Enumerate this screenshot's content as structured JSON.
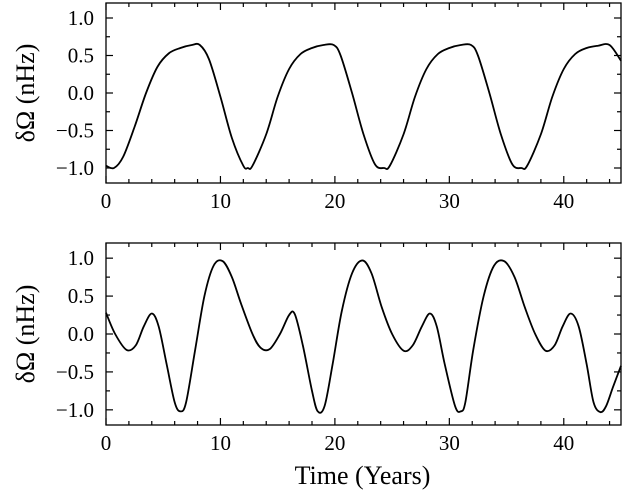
{
  "chart_data": [
    {
      "type": "line",
      "ylabel": "δΩ (nHz)",
      "xlabel": "",
      "xlim": [
        0,
        45
      ],
      "ylim": [
        -1.2,
        1.2
      ],
      "xticks": [
        0,
        10,
        20,
        30,
        40
      ],
      "xtick_labels": [
        "0",
        "10",
        "20",
        "30",
        "40"
      ],
      "yticks": [
        -1.0,
        -0.5,
        0.0,
        0.5,
        1.0
      ],
      "ytick_labels": [
        "−1.0",
        "−0.5",
        "0.0",
        "0.5",
        "1.0"
      ],
      "grid": false,
      "series": [
        {
          "x": [
            0,
            0.7,
            1.5,
            2.5,
            3.5,
            4.5,
            5.5,
            6.5,
            7.5,
            8.2,
            9.0,
            10.0,
            11.0,
            12.0,
            12.4,
            12.8,
            14.0,
            15.0,
            16.0,
            17.0,
            18.0,
            19.0,
            19.9,
            20.5,
            21.5,
            22.5,
            23.5,
            24.3,
            24.8,
            26.0,
            27.0,
            28.0,
            29.0,
            30.0,
            31.0,
            31.9,
            32.5,
            33.5,
            34.5,
            35.5,
            36.3,
            36.8,
            38.0,
            39.0,
            40.0,
            41.0,
            42.0,
            43.0,
            44.0,
            45.0
          ],
          "y": [
            -0.97,
            -1.0,
            -0.85,
            -0.45,
            0.0,
            0.35,
            0.53,
            0.6,
            0.64,
            0.64,
            0.45,
            -0.05,
            -0.6,
            -0.97,
            -1.0,
            -0.97,
            -0.55,
            -0.05,
            0.32,
            0.52,
            0.6,
            0.64,
            0.64,
            0.5,
            0.0,
            -0.55,
            -0.95,
            -1.0,
            -0.97,
            -0.55,
            -0.05,
            0.32,
            0.52,
            0.6,
            0.64,
            0.64,
            0.5,
            0.0,
            -0.55,
            -0.95,
            -1.0,
            -0.97,
            -0.55,
            -0.05,
            0.32,
            0.52,
            0.6,
            0.63,
            0.64,
            0.43
          ]
        }
      ]
    },
    {
      "type": "line",
      "ylabel": "δΩ (nHz)",
      "xlabel": "Time (Years)",
      "xlim": [
        0,
        45
      ],
      "ylim": [
        -1.2,
        1.2
      ],
      "xticks": [
        0,
        10,
        20,
        30,
        40
      ],
      "xtick_labels": [
        "0",
        "10",
        "20",
        "30",
        "40"
      ],
      "yticks": [
        -1.0,
        -0.5,
        0.0,
        0.5,
        1.0
      ],
      "ytick_labels": [
        "−1.0",
        "−0.5",
        "0.0",
        "0.5",
        "1.0"
      ],
      "grid": false,
      "series": [
        {
          "x": [
            0,
            0.8,
            1.8,
            2.6,
            3.3,
            4.0,
            4.6,
            5.3,
            6.0,
            6.5,
            7.0,
            7.8,
            8.6,
            9.4,
            10.2,
            11.0,
            11.8,
            12.8,
            13.5,
            14.3,
            15.2,
            16.0,
            16.5,
            17.2,
            18.0,
            18.5,
            19.1,
            19.8,
            20.6,
            21.5,
            22.4,
            23.2,
            24.1,
            25.0,
            26.0,
            26.8,
            27.6,
            28.3,
            28.9,
            29.6,
            30.5,
            31.0,
            31.4,
            32.1,
            33.0,
            33.9,
            34.8,
            35.7,
            36.6,
            37.5,
            38.4,
            39.2,
            39.9,
            40.6,
            41.3,
            42.0,
            42.6,
            43.2,
            43.7,
            44.3,
            45.0
          ],
          "y": [
            0.28,
            0.0,
            -0.21,
            -0.15,
            0.1,
            0.27,
            0.1,
            -0.4,
            -0.9,
            -1.02,
            -0.9,
            -0.2,
            0.5,
            0.9,
            0.96,
            0.75,
            0.4,
            0.0,
            -0.18,
            -0.2,
            0.0,
            0.25,
            0.26,
            -0.15,
            -0.75,
            -1.02,
            -0.95,
            -0.4,
            0.3,
            0.8,
            0.97,
            0.8,
            0.35,
            0.0,
            -0.22,
            -0.15,
            0.1,
            0.27,
            0.1,
            -0.4,
            -0.95,
            -1.02,
            -0.9,
            -0.2,
            0.5,
            0.9,
            0.96,
            0.75,
            0.35,
            0.0,
            -0.22,
            -0.15,
            0.1,
            0.27,
            0.1,
            -0.4,
            -0.9,
            -1.03,
            -0.95,
            -0.7,
            -0.42
          ]
        }
      ]
    }
  ]
}
